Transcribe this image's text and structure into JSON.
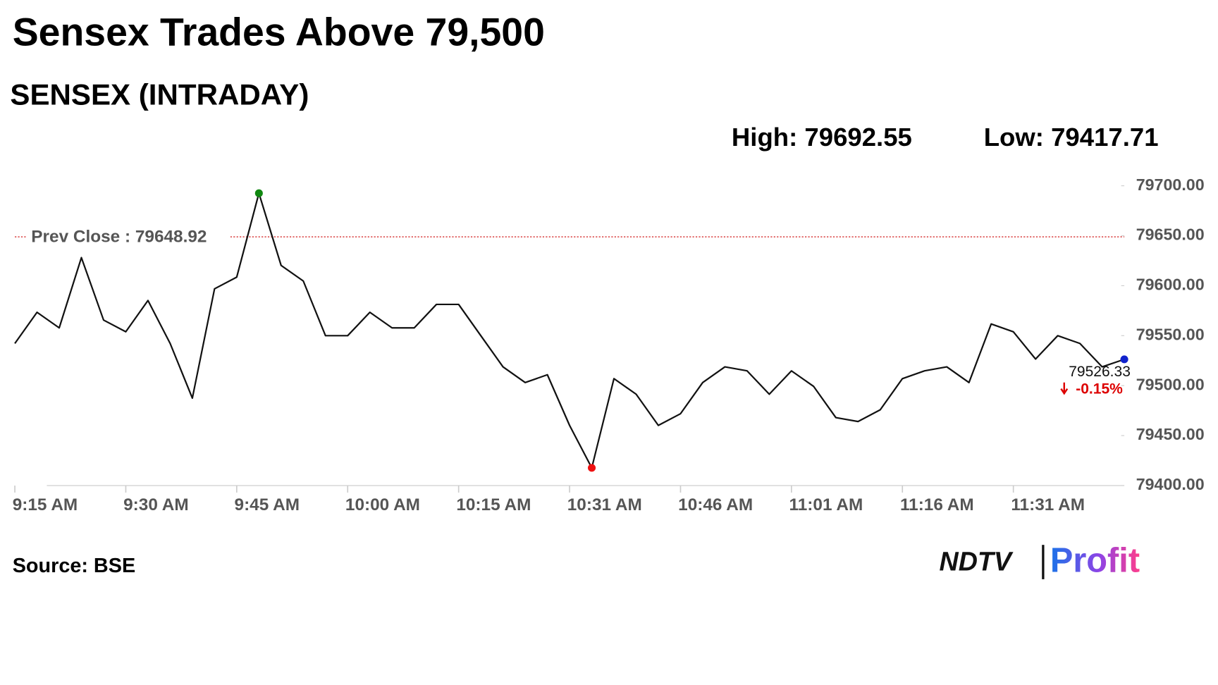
{
  "chart_data": {
    "type": "line",
    "title": "Sensex Trades Above 79,500",
    "subtitle": "SENSEX (INTRADAY)",
    "high_label": "High: 79692.55",
    "low_label": "Low: 79417.71",
    "high": 79692.55,
    "low": 79417.71,
    "prev_close_label": "Prev Close : 79648.92",
    "prev_close": 79648.92,
    "prev_close_color": "#cc0000",
    "change": -0.15,
    "change_label": "-0.15%",
    "change_color": "#dd0000",
    "high_color": "#118811",
    "low_color": "#ee1111",
    "last_color": "#1122cc",
    "x": [
      "9:15 AM",
      "9:18 AM",
      "9:21 AM",
      "9:24 AM",
      "9:27 AM",
      "9:30 AM",
      "9:33 AM",
      "9:36 AM",
      "9:39 AM",
      "9:42 AM",
      "9:45 AM",
      "9:48 AM",
      "9:51 AM",
      "9:54 AM",
      "9:57 AM",
      "10:00 AM",
      "10:03 AM",
      "10:06 AM",
      "10:09 AM",
      "10:12 AM",
      "10:15 AM",
      "10:18 AM",
      "10:21 AM",
      "10:24 AM",
      "10:27 AM",
      "10:31 AM",
      "10:34 AM",
      "10:37 AM",
      "10:40 AM",
      "10:43 AM",
      "10:46 AM",
      "10:49 AM",
      "10:52 AM",
      "10:55 AM",
      "10:58 AM",
      "11:01 AM",
      "11:04 AM",
      "11:07 AM",
      "11:10 AM",
      "11:13 AM",
      "11:16 AM",
      "11:19 AM",
      "11:22 AM",
      "11:25 AM",
      "11:28 AM",
      "11:31 AM",
      "11:34 AM",
      "11:37 AM",
      "11:40 AM",
      "11:43 AM",
      "11:46 AM"
    ],
    "series": [
      {
        "name": "SENSEX",
        "color": "#111111",
        "values": [
          79542.2,
          79573.4,
          79557.8,
          79628.1,
          79565.6,
          79553.9,
          79585.2,
          79542.2,
          79487.5,
          79596.9,
          79608.6,
          79692.55,
          79620.3,
          79604.7,
          79550.0,
          79550.0,
          79573.4,
          79557.8,
          79557.8,
          79581.3,
          79581.3,
          79550.0,
          79518.8,
          79503.1,
          79510.9,
          79460.2,
          79417.71,
          79507.0,
          79491.4,
          79460.2,
          79471.9,
          79503.1,
          79518.8,
          79514.8,
          79491.4,
          79514.8,
          79499.2,
          79468.0,
          79464.1,
          79475.8,
          79507.0,
          79514.8,
          79518.8,
          79503.1,
          79561.7,
          79553.9,
          79526.6,
          79550.0,
          79542.2,
          79518.8,
          79526.33
        ]
      }
    ],
    "xticks": [
      "9:15 AM",
      "9:30 AM",
      "9:45 AM",
      "10:00 AM",
      "10:15 AM",
      "10:31 AM",
      "10:46 AM",
      "11:01 AM",
      "11:16 AM",
      "11:31 AM"
    ],
    "ylim": [
      79400,
      79710
    ],
    "yticks": [
      {
        "value": 79400,
        "label": "79400.00"
      },
      {
        "value": 79450,
        "label": "79450.00"
      },
      {
        "value": 79500,
        "label": "79500.00"
      },
      {
        "value": 79550,
        "label": "79550.00"
      },
      {
        "value": 79600,
        "label": "79600.00"
      },
      {
        "value": 79650,
        "label": "79650.00"
      },
      {
        "value": 79700,
        "label": "79700.00"
      }
    ],
    "grid": false
  },
  "source": "Source: BSE",
  "brand": {
    "name": "NDTV",
    "product": "Profit"
  }
}
